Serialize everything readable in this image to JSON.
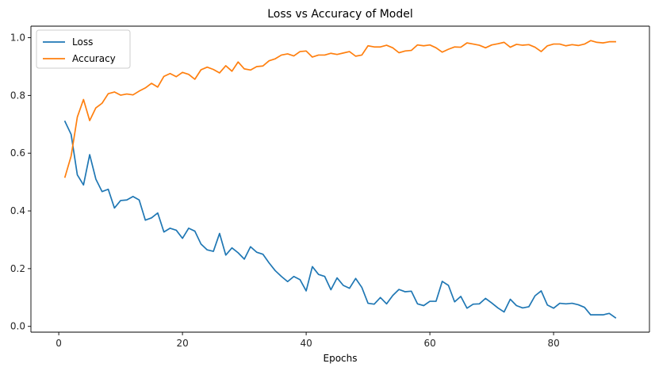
{
  "chart_data": {
    "type": "line",
    "title": "Loss vs Accuracy of Model",
    "xlabel": "Epochs",
    "ylabel": "",
    "xlim": [
      -4.5,
      95.5
    ],
    "ylim": [
      -0.02,
      1.04
    ],
    "x_ticks": [
      0,
      20,
      40,
      60,
      80
    ],
    "y_ticks": [
      0.0,
      0.2,
      0.4,
      0.6,
      0.8,
      1.0
    ],
    "x_tick_labels": [
      "0",
      "20",
      "40",
      "60",
      "80"
    ],
    "y_tick_labels": [
      "0.0",
      "0.2",
      "0.4",
      "0.6",
      "0.8",
      "1.0"
    ],
    "grid": false,
    "legend": "top-left",
    "x": [
      1,
      2,
      3,
      4,
      5,
      6,
      7,
      8,
      9,
      10,
      11,
      12,
      13,
      14,
      15,
      16,
      17,
      18,
      19,
      20,
      21,
      22,
      23,
      24,
      25,
      26,
      27,
      28,
      29,
      30,
      31,
      32,
      33,
      34,
      35,
      36,
      37,
      38,
      39,
      40,
      41,
      42,
      43,
      44,
      45,
      46,
      47,
      48,
      49,
      50,
      51,
      52,
      53,
      54,
      55,
      56,
      57,
      58,
      59,
      60,
      61,
      62,
      63,
      64,
      65,
      66,
      67,
      68,
      69,
      70,
      71,
      72,
      73,
      74,
      75,
      76,
      77,
      78,
      79,
      80,
      81,
      82,
      83,
      84,
      85,
      86,
      87,
      88,
      89,
      90
    ],
    "series": [
      {
        "name": "Loss",
        "color": "#1f77b4",
        "values": [
          0.71,
          0.665,
          0.525,
          0.49,
          0.595,
          0.51,
          0.467,
          0.475,
          0.41,
          0.436,
          0.438,
          0.45,
          0.438,
          0.368,
          0.376,
          0.393,
          0.327,
          0.34,
          0.333,
          0.305,
          0.34,
          0.33,
          0.285,
          0.265,
          0.26,
          0.322,
          0.247,
          0.272,
          0.255,
          0.233,
          0.276,
          0.257,
          0.25,
          0.22,
          0.193,
          0.173,
          0.155,
          0.173,
          0.162,
          0.123,
          0.207,
          0.18,
          0.173,
          0.127,
          0.168,
          0.142,
          0.132,
          0.166,
          0.135,
          0.08,
          0.077,
          0.1,
          0.078,
          0.107,
          0.128,
          0.12,
          0.122,
          0.078,
          0.072,
          0.087,
          0.087,
          0.156,
          0.142,
          0.085,
          0.104,
          0.063,
          0.077,
          0.078,
          0.097,
          0.081,
          0.064,
          0.05,
          0.094,
          0.072,
          0.064,
          0.068,
          0.106,
          0.123,
          0.074,
          0.063,
          0.08,
          0.078,
          0.08,
          0.075,
          0.066,
          0.04,
          0.04,
          0.04,
          0.045,
          0.03
        ]
      },
      {
        "name": "Accuracy",
        "color": "#ff7f0e",
        "values": [
          0.517,
          0.59,
          0.725,
          0.786,
          0.713,
          0.757,
          0.773,
          0.806,
          0.812,
          0.801,
          0.805,
          0.802,
          0.815,
          0.826,
          0.842,
          0.829,
          0.866,
          0.876,
          0.865,
          0.88,
          0.873,
          0.856,
          0.889,
          0.898,
          0.89,
          0.878,
          0.903,
          0.884,
          0.916,
          0.892,
          0.888,
          0.9,
          0.902,
          0.92,
          0.927,
          0.94,
          0.944,
          0.937,
          0.952,
          0.954,
          0.933,
          0.94,
          0.94,
          0.946,
          0.942,
          0.947,
          0.952,
          0.936,
          0.94,
          0.972,
          0.968,
          0.968,
          0.974,
          0.965,
          0.948,
          0.954,
          0.956,
          0.975,
          0.972,
          0.975,
          0.965,
          0.95,
          0.96,
          0.968,
          0.967,
          0.982,
          0.978,
          0.974,
          0.965,
          0.975,
          0.979,
          0.984,
          0.967,
          0.977,
          0.974,
          0.976,
          0.967,
          0.952,
          0.972,
          0.978,
          0.978,
          0.972,
          0.976,
          0.973,
          0.978,
          0.99,
          0.984,
          0.982,
          0.986,
          0.986
        ]
      }
    ]
  }
}
